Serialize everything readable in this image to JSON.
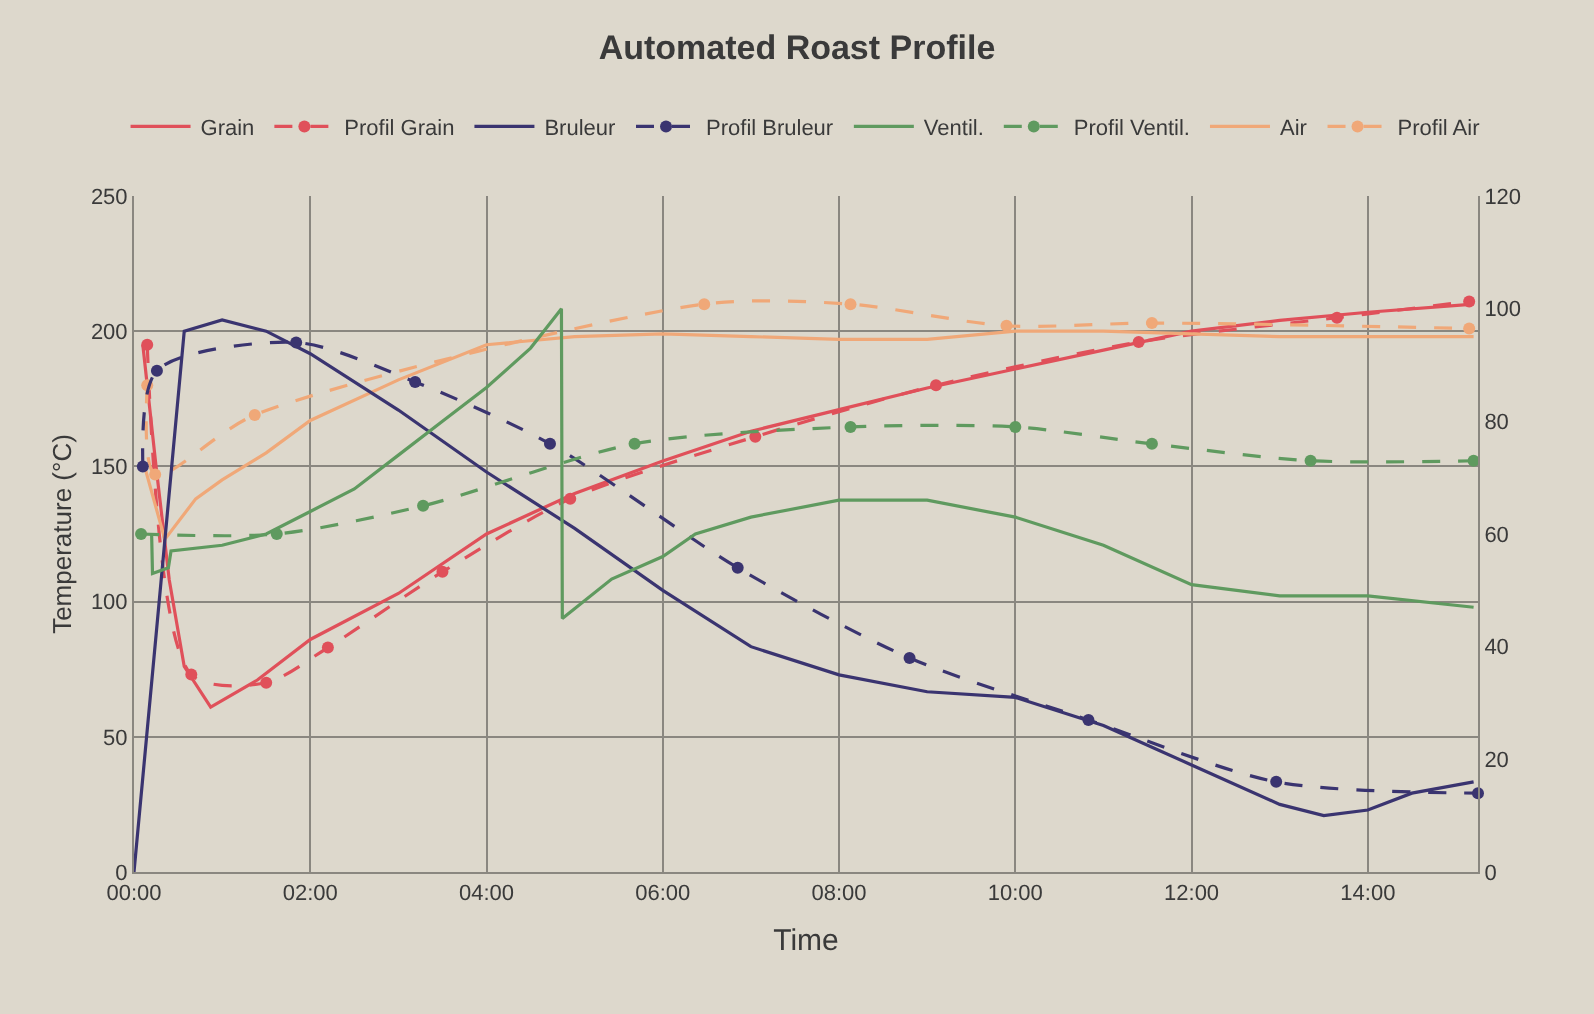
{
  "chart_data": {
    "type": "line",
    "title": "Automated Roast Profile",
    "xlabel": "Time",
    "ylabel": "Temperature (°C)",
    "xlim": [
      0,
      15.25
    ],
    "xticks": [
      {
        "value": 0,
        "label": "00:00"
      },
      {
        "value": 2,
        "label": "02:00"
      },
      {
        "value": 4,
        "label": "04:00"
      },
      {
        "value": 6,
        "label": "06:00"
      },
      {
        "value": 8,
        "label": "08:00"
      },
      {
        "value": 10,
        "label": "10:00"
      },
      {
        "value": 12,
        "label": "12:00"
      },
      {
        "value": 14,
        "label": "14:00"
      }
    ],
    "ylim": [
      0,
      250
    ],
    "yticks": [
      0,
      50,
      100,
      150,
      200,
      250
    ],
    "y2lim": [
      0,
      120
    ],
    "y2ticks": [
      0,
      20,
      40,
      60,
      80,
      100,
      120
    ],
    "grid": true,
    "legend": "top",
    "series": [
      {
        "name": "Grain",
        "color": "#e0505a",
        "line_style": "solid",
        "marker": "none",
        "x": [
          0.1,
          0.25,
          0.4,
          0.57,
          0.87,
          1.4,
          2,
          3,
          4,
          5,
          6,
          7,
          8,
          9,
          10,
          11,
          12,
          13,
          14,
          15.2
        ],
        "values": [
          195,
          150,
          108,
          76,
          61,
          71,
          86,
          103,
          125,
          140,
          152,
          163,
          171,
          179,
          186,
          193,
          200,
          204,
          207,
          210
        ]
      },
      {
        "name": "Profil Grain",
        "color": "#e0505a",
        "line_style": "dashed",
        "marker": "circle",
        "x": [
          0.15,
          0.65,
          1.5,
          2.2,
          3.5,
          4.95,
          7.05,
          9.1,
          11.4,
          13.65,
          15.15
        ],
        "values": [
          195,
          73,
          70,
          83,
          111,
          138,
          161,
          180,
          196,
          205,
          211
        ]
      },
      {
        "name": "Bruleur",
        "color": "#3a3470",
        "line_style": "solid",
        "marker": "none",
        "axis": "y2",
        "x": [
          0,
          0.25,
          0.57,
          1,
          1.5,
          2,
          3,
          4,
          5,
          6,
          7,
          8,
          9,
          10,
          11,
          12,
          13,
          13.5,
          14,
          14.5,
          15.2
        ],
        "values": [
          0,
          42,
          96,
          98,
          96,
          92,
          82,
          71,
          61,
          50,
          40,
          35,
          32,
          31,
          26,
          19,
          12,
          10,
          11,
          14,
          16
        ]
      },
      {
        "name": "Profil Bruleur",
        "color": "#3a3470",
        "line_style": "dashed",
        "marker": "circle",
        "axis": "y2",
        "x": [
          0.1,
          0.26,
          1.84,
          3.19,
          4.72,
          6.85,
          8.8,
          10.83,
          12.96,
          15.25
        ],
        "values": [
          72,
          89,
          94,
          87,
          76,
          54,
          38,
          27,
          16,
          14
        ]
      },
      {
        "name": "Ventil.",
        "color": "#5f9a5f",
        "line_style": "solid",
        "marker": "none",
        "axis": "y2",
        "x": [
          0.2,
          0.21,
          0.39,
          0.42,
          1,
          1.5,
          2,
          2.5,
          3,
          3.5,
          4,
          4.5,
          4.85,
          4.86,
          5.42,
          6,
          6.37,
          7,
          8,
          8.6,
          9,
          10,
          11,
          12,
          13,
          14,
          15.2
        ],
        "values": [
          60,
          53,
          54,
          57,
          58,
          60,
          64,
          68,
          74,
          80,
          86,
          93,
          100,
          45,
          52,
          56,
          60,
          63,
          66,
          66,
          66,
          63,
          58,
          51,
          49,
          49,
          47
        ]
      },
      {
        "name": "Profil Ventil.",
        "color": "#5f9a5f",
        "line_style": "dashed",
        "marker": "circle",
        "axis": "y2",
        "x": [
          0.08,
          1.62,
          3.28,
          5.68,
          8.13,
          10,
          11.55,
          13.35,
          15.2
        ],
        "values": [
          60,
          60,
          65,
          76,
          79,
          79,
          76,
          73,
          73
        ]
      },
      {
        "name": "Air",
        "color": "#f0a878",
        "line_style": "solid",
        "marker": "none",
        "x": [
          0.12,
          0.35,
          0.7,
          1,
          1.5,
          2,
          3,
          4,
          5,
          6,
          7,
          8,
          9,
          10,
          11,
          12,
          13,
          14,
          15.2
        ],
        "values": [
          150,
          123,
          138,
          145,
          155,
          167,
          182,
          195,
          198,
          199,
          198,
          197,
          197,
          200,
          200,
          199,
          198,
          198,
          198
        ]
      },
      {
        "name": "Profil Air",
        "color": "#f0a878",
        "line_style": "dashed",
        "marker": "circle",
        "x": [
          0.15,
          0.24,
          1.37,
          6.47,
          8.13,
          9.9,
          11.55,
          15.15
        ],
        "values": [
          180,
          147,
          169,
          210,
          210,
          202,
          203,
          201
        ]
      }
    ]
  }
}
